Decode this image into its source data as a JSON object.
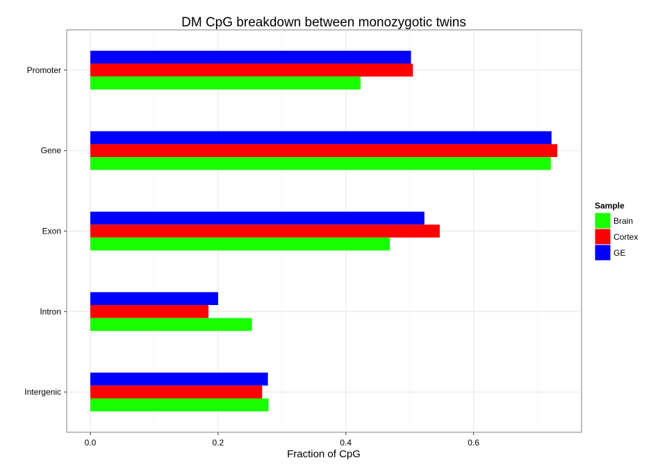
{
  "chart_data": {
    "type": "bar",
    "orientation": "horizontal",
    "title": "DM CpG breakdown between monozygotic twins",
    "xlabel": "Fraction of CpG",
    "ylabel": "",
    "categories": [
      "Promoter",
      "Gene",
      "Exon",
      "Intron",
      "Intergenic"
    ],
    "series": [
      {
        "name": "GE",
        "color": "#0000ff",
        "values": [
          0.502,
          0.722,
          0.523,
          0.2,
          0.278
        ]
      },
      {
        "name": "Cortex",
        "color": "#ff0000",
        "values": [
          0.505,
          0.731,
          0.547,
          0.185,
          0.269
        ]
      },
      {
        "name": "Brain",
        "color": "#1aff00",
        "values": [
          0.423,
          0.721,
          0.469,
          0.253,
          0.279
        ]
      }
    ],
    "xlim": [
      -0.037,
      0.769
    ],
    "xticks": [
      "0.0",
      "0.2",
      "0.4",
      "0.6"
    ],
    "xtick_values": [
      0,
      0.2,
      0.4,
      0.6
    ],
    "grid": true,
    "legend": {
      "title": "Sample",
      "placement": "right",
      "entries": [
        {
          "label": "Brain",
          "color": "#1aff00"
        },
        {
          "label": "Cortex",
          "color": "#ff0000"
        },
        {
          "label": "GE",
          "color": "#0000ff"
        }
      ]
    }
  }
}
